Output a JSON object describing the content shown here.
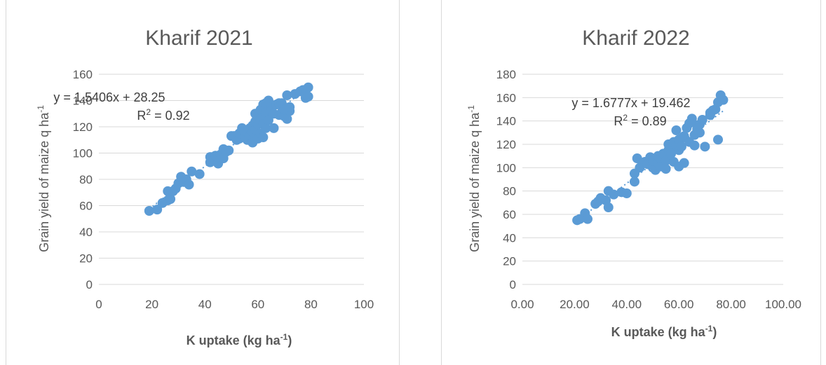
{
  "colors": {
    "marker": "#5b9bd5",
    "text": "#595959",
    "grid": "#d9d9d9"
  },
  "chart_data": [
    {
      "type": "scatter",
      "title": "Kharif 2021",
      "xlabel": "K uptake (kg ha",
      "xlabel_sup": "-1",
      "xlabel_end": ")",
      "ylabel": "Grain yield of maize q  ha",
      "ylabel_sup": "-1",
      "xlim": [
        0,
        100
      ],
      "ylim": [
        0,
        160
      ],
      "x_ticks": [
        "0",
        "20",
        "40",
        "60",
        "80",
        "100"
      ],
      "y_ticks": [
        "0",
        "20",
        "40",
        "60",
        "80",
        "100",
        "120",
        "140",
        "160"
      ],
      "grid": true,
      "trendline": {
        "slope": 1.5406,
        "intercept": 28.25,
        "equation": "y = 1.5406x + 28.25",
        "r2_label": "R",
        "r2_sup": "2",
        "r2_value": " = 0.92"
      },
      "points": [
        [
          19,
          56
        ],
        [
          22,
          57
        ],
        [
          24,
          62
        ],
        [
          26,
          64
        ],
        [
          26,
          71
        ],
        [
          27,
          65
        ],
        [
          28,
          71
        ],
        [
          29,
          73
        ],
        [
          30,
          77
        ],
        [
          31,
          82
        ],
        [
          32,
          78
        ],
        [
          33,
          80
        ],
        [
          34,
          76
        ],
        [
          35,
          86
        ],
        [
          38,
          84
        ],
        [
          42,
          93
        ],
        [
          42,
          97
        ],
        [
          43,
          97
        ],
        [
          44,
          98
        ],
        [
          45,
          92
        ],
        [
          45,
          97
        ],
        [
          46,
          99
        ],
        [
          47,
          103
        ],
        [
          47,
          96
        ],
        [
          48,
          101
        ],
        [
          49,
          102
        ],
        [
          50,
          113
        ],
        [
          51,
          113
        ],
        [
          52,
          110
        ],
        [
          53,
          111
        ],
        [
          53,
          115
        ],
        [
          54,
          119
        ],
        [
          54,
          114
        ],
        [
          55,
          112
        ],
        [
          55,
          117
        ],
        [
          56,
          116
        ],
        [
          56,
          110
        ],
        [
          57,
          119
        ],
        [
          57,
          113
        ],
        [
          58,
          108
        ],
        [
          58,
          116
        ],
        [
          58,
          121
        ],
        [
          59,
          118
        ],
        [
          59,
          124
        ],
        [
          59,
          130
        ],
        [
          60,
          129
        ],
        [
          60,
          111
        ],
        [
          60,
          122
        ],
        [
          61,
          133
        ],
        [
          61,
          126
        ],
        [
          61,
          115
        ],
        [
          62,
          137
        ],
        [
          62,
          122
        ],
        [
          62,
          112
        ],
        [
          63,
          138
        ],
        [
          63,
          131
        ],
        [
          63,
          119
        ],
        [
          64,
          140
        ],
        [
          64,
          125
        ],
        [
          65,
          135
        ],
        [
          65,
          132
        ],
        [
          66,
          119
        ],
        [
          66,
          130
        ],
        [
          67,
          137
        ],
        [
          68,
          138
        ],
        [
          68,
          129
        ],
        [
          69,
          131
        ],
        [
          69,
          138
        ],
        [
          70,
          128
        ],
        [
          70,
          133
        ],
        [
          71,
          144
        ],
        [
          71,
          126
        ],
        [
          72,
          132
        ],
        [
          72,
          135
        ],
        [
          74,
          145
        ],
        [
          76,
          147
        ],
        [
          77,
          148
        ],
        [
          78,
          142
        ],
        [
          78,
          145
        ],
        [
          79,
          150
        ],
        [
          79,
          143
        ]
      ]
    },
    {
      "type": "scatter",
      "title": "Kharif 2022",
      "xlabel": "K uptake (kg ha",
      "xlabel_sup": "-1",
      "xlabel_end": ")",
      "ylabel": "Grain yield of maize q  ha",
      "ylabel_sup": "-1",
      "xlim": [
        0,
        100
      ],
      "ylim": [
        0,
        180
      ],
      "x_ticks": [
        "0.00",
        "20.00",
        "40.00",
        "60.00",
        "80.00",
        "100.00"
      ],
      "y_ticks": [
        "0",
        "20",
        "40",
        "60",
        "80",
        "100",
        "120",
        "140",
        "160",
        "180"
      ],
      "grid": true,
      "trendline": {
        "slope": 1.6777,
        "intercept": 19.462,
        "equation": "y = 1.6777x + 19.462",
        "r2_label": "R",
        "r2_sup": "2",
        "r2_value": " = 0.89"
      },
      "points": [
        [
          21,
          55
        ],
        [
          22,
          56
        ],
        [
          24,
          61
        ],
        [
          25,
          56
        ],
        [
          28,
          69
        ],
        [
          29,
          71
        ],
        [
          30,
          74
        ],
        [
          32,
          72
        ],
        [
          33,
          80
        ],
        [
          33,
          66
        ],
        [
          35,
          77
        ],
        [
          38,
          79
        ],
        [
          40,
          78
        ],
        [
          43,
          95
        ],
        [
          43,
          88
        ],
        [
          44,
          108
        ],
        [
          45,
          100
        ],
        [
          46,
          104
        ],
        [
          47,
          105
        ],
        [
          48,
          103
        ],
        [
          49,
          109
        ],
        [
          50,
          100
        ],
        [
          50,
          106
        ],
        [
          51,
          98
        ],
        [
          52,
          104
        ],
        [
          52,
          110
        ],
        [
          53,
          101
        ],
        [
          53,
          108
        ],
        [
          54,
          112
        ],
        [
          55,
          99
        ],
        [
          55,
          106
        ],
        [
          56,
          115
        ],
        [
          56,
          120
        ],
        [
          57,
          118
        ],
        [
          57,
          112
        ],
        [
          58,
          122
        ],
        [
          58,
          105
        ],
        [
          59,
          119
        ],
        [
          59,
          132
        ],
        [
          60,
          124
        ],
        [
          60,
          115
        ],
        [
          60,
          101
        ],
        [
          61,
          125
        ],
        [
          61,
          118
        ],
        [
          62,
          104
        ],
        [
          62,
          127
        ],
        [
          63,
          134
        ],
        [
          64,
          138
        ],
        [
          64,
          122
        ],
        [
          65,
          139
        ],
        [
          65,
          142
        ],
        [
          66,
          119
        ],
        [
          66,
          128
        ],
        [
          67,
          133
        ],
        [
          68,
          130
        ],
        [
          68,
          137
        ],
        [
          69,
          141
        ],
        [
          70,
          118
        ],
        [
          72,
          147
        ],
        [
          72,
          145
        ],
        [
          73,
          149
        ],
        [
          74,
          150
        ],
        [
          75,
          156
        ],
        [
          75,
          124
        ],
        [
          76,
          162
        ],
        [
          77,
          158
        ]
      ]
    }
  ]
}
